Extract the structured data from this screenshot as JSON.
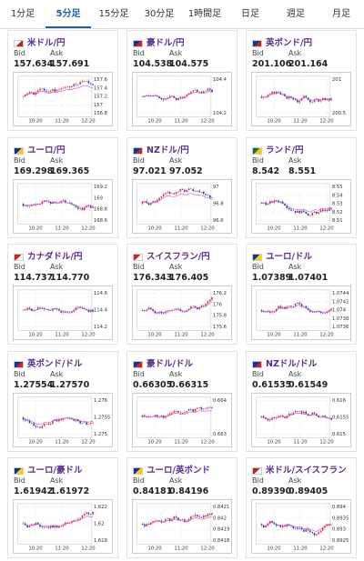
{
  "tabs": [
    "1分足",
    "5分足",
    "15分足",
    "30分足",
    "1時間足",
    "日足",
    "週足",
    "月足"
  ],
  "active_tab": 1,
  "labels": {
    "bid": "Bid",
    "ask": "Ask"
  },
  "time_labels": [
    "10:20",
    "11:20",
    "12:20"
  ],
  "cards": [
    {
      "pair": "米ドル/円",
      "bid": "157.634",
      "ask": "157.691",
      "yticks": [
        "157.6",
        "157.4",
        "157.2",
        "157",
        "156.8"
      ]
    },
    {
      "pair": "豪ドル/円",
      "bid": "104.538",
      "ask": "104.575",
      "yticks": [
        "104.4",
        "104.2"
      ]
    },
    {
      "pair": "英ポンド/円",
      "bid": "201.106",
      "ask": "201.164",
      "yticks": [
        "201",
        "200.5"
      ]
    },
    {
      "pair": "ユーロ/円",
      "bid": "169.298",
      "ask": "169.365",
      "yticks": [
        "169.2",
        "169",
        "168.8",
        "168.6"
      ]
    },
    {
      "pair": "NZドル/円",
      "bid": "97.021",
      "ask": "97.052",
      "yticks": [
        "97",
        "96.8",
        "96.6"
      ]
    },
    {
      "pair": "ランド/円",
      "bid": "8.542",
      "ask": "8.551",
      "yticks": [
        "8.55",
        "8.54",
        "8.53",
        "8.52",
        "8.51"
      ]
    },
    {
      "pair": "カナダドル/円",
      "bid": "114.737",
      "ask": "114.770",
      "yticks": [
        "114.6",
        "114.4",
        "114.2"
      ]
    },
    {
      "pair": "スイスフラン/円",
      "bid": "176.343",
      "ask": "176.405",
      "yticks": [
        "176.2",
        "176",
        "175.8",
        "175.6"
      ]
    },
    {
      "pair": "ユーロ/ドル",
      "bid": "1.07389",
      "ask": "1.07401",
      "yticks": [
        "1.0744",
        "1.0742",
        "1.074",
        "1.0738",
        "1.0736"
      ]
    },
    {
      "pair": "英ポンド/ドル",
      "bid": "1.27554",
      "ask": "1.27570",
      "yticks": [
        "1.276",
        "1.2755",
        "1.275"
      ]
    },
    {
      "pair": "豪ドル/ドル",
      "bid": "0.66305",
      "ask": "0.66315",
      "yticks": [
        "0.664",
        "0.663"
      ]
    },
    {
      "pair": "NZドル/ドル",
      "bid": "0.61535",
      "ask": "0.61549",
      "yticks": [
        "0.616",
        "0.6155",
        "0.615"
      ]
    },
    {
      "pair": "ユーロ/豪ドル",
      "bid": "1.61942",
      "ask": "1.61972",
      "yticks": [
        "1.622",
        "1.62",
        "1.618"
      ]
    },
    {
      "pair": "ユーロ/英ポンド",
      "bid": "0.84181",
      "ask": "0.84196",
      "yticks": [
        "0.8421",
        "0.842",
        "0.8419",
        "0.8418"
      ]
    },
    {
      "pair": "米ドル/スイスフラン",
      "bid": "0.89390",
      "ask": "0.89405",
      "yticks": [
        "0.894",
        "0.8935",
        "0.893",
        "0.8925"
      ]
    }
  ]
}
